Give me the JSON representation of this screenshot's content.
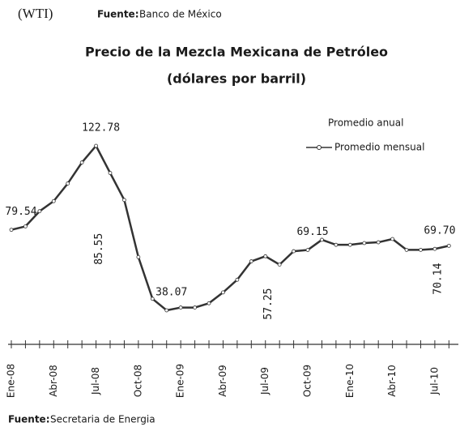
{
  "header": {
    "top_left": "(WTI)",
    "source_label": "Fuente:",
    "source": "Banco de México"
  },
  "footer": {
    "source_label": "Fuente:",
    "source": "Secretaria de Energia"
  },
  "chart_data": {
    "type": "line",
    "title": "Precio de la Mezcla Mexicana  de Petróleo",
    "subtitle": "(dólares por barril)",
    "categories": [
      "Ene-08",
      null,
      null,
      "Abr-08",
      null,
      null,
      "Jul-08",
      null,
      null,
      "Oct-08",
      null,
      null,
      "Ene-09",
      null,
      null,
      "Abr-09",
      null,
      null,
      "Jul-09",
      null,
      null,
      "Oct-09",
      null,
      null,
      "Ene-10",
      null,
      null,
      "Abr-10",
      null,
      null,
      "Jul-10",
      null
    ],
    "series": [
      {
        "name": "Promedio mensual",
        "color": "#333333",
        "values": [
          79.54,
          81.3,
          89.1,
          94.3,
          103.4,
          114.2,
          122.78,
          108.8,
          94.9,
          65.5,
          44.0,
          38.07,
          39.5,
          39.5,
          41.7,
          47.3,
          53.8,
          63.3,
          65.9,
          61.6,
          68.5,
          69.15,
          74.4,
          71.8,
          71.8,
          72.7,
          73.1,
          74.8,
          69.2,
          69.2,
          69.7,
          71.3
        ],
        "value_labels": [
          "79.54",
          null,
          null,
          null,
          null,
          null,
          "122.78",
          null,
          null,
          null,
          null,
          "38.07",
          null,
          null,
          null,
          null,
          null,
          null,
          null,
          null,
          null,
          "69.15",
          null,
          null,
          null,
          null,
          null,
          null,
          null,
          null,
          "69.70",
          null
        ]
      }
    ],
    "annual_average": {
      "name": "Promedio anual",
      "values": [
        85.55,
        57.25,
        70.14
      ],
      "value_labels": [
        "85.55",
        "57.25",
        "70.14"
      ]
    }
  }
}
